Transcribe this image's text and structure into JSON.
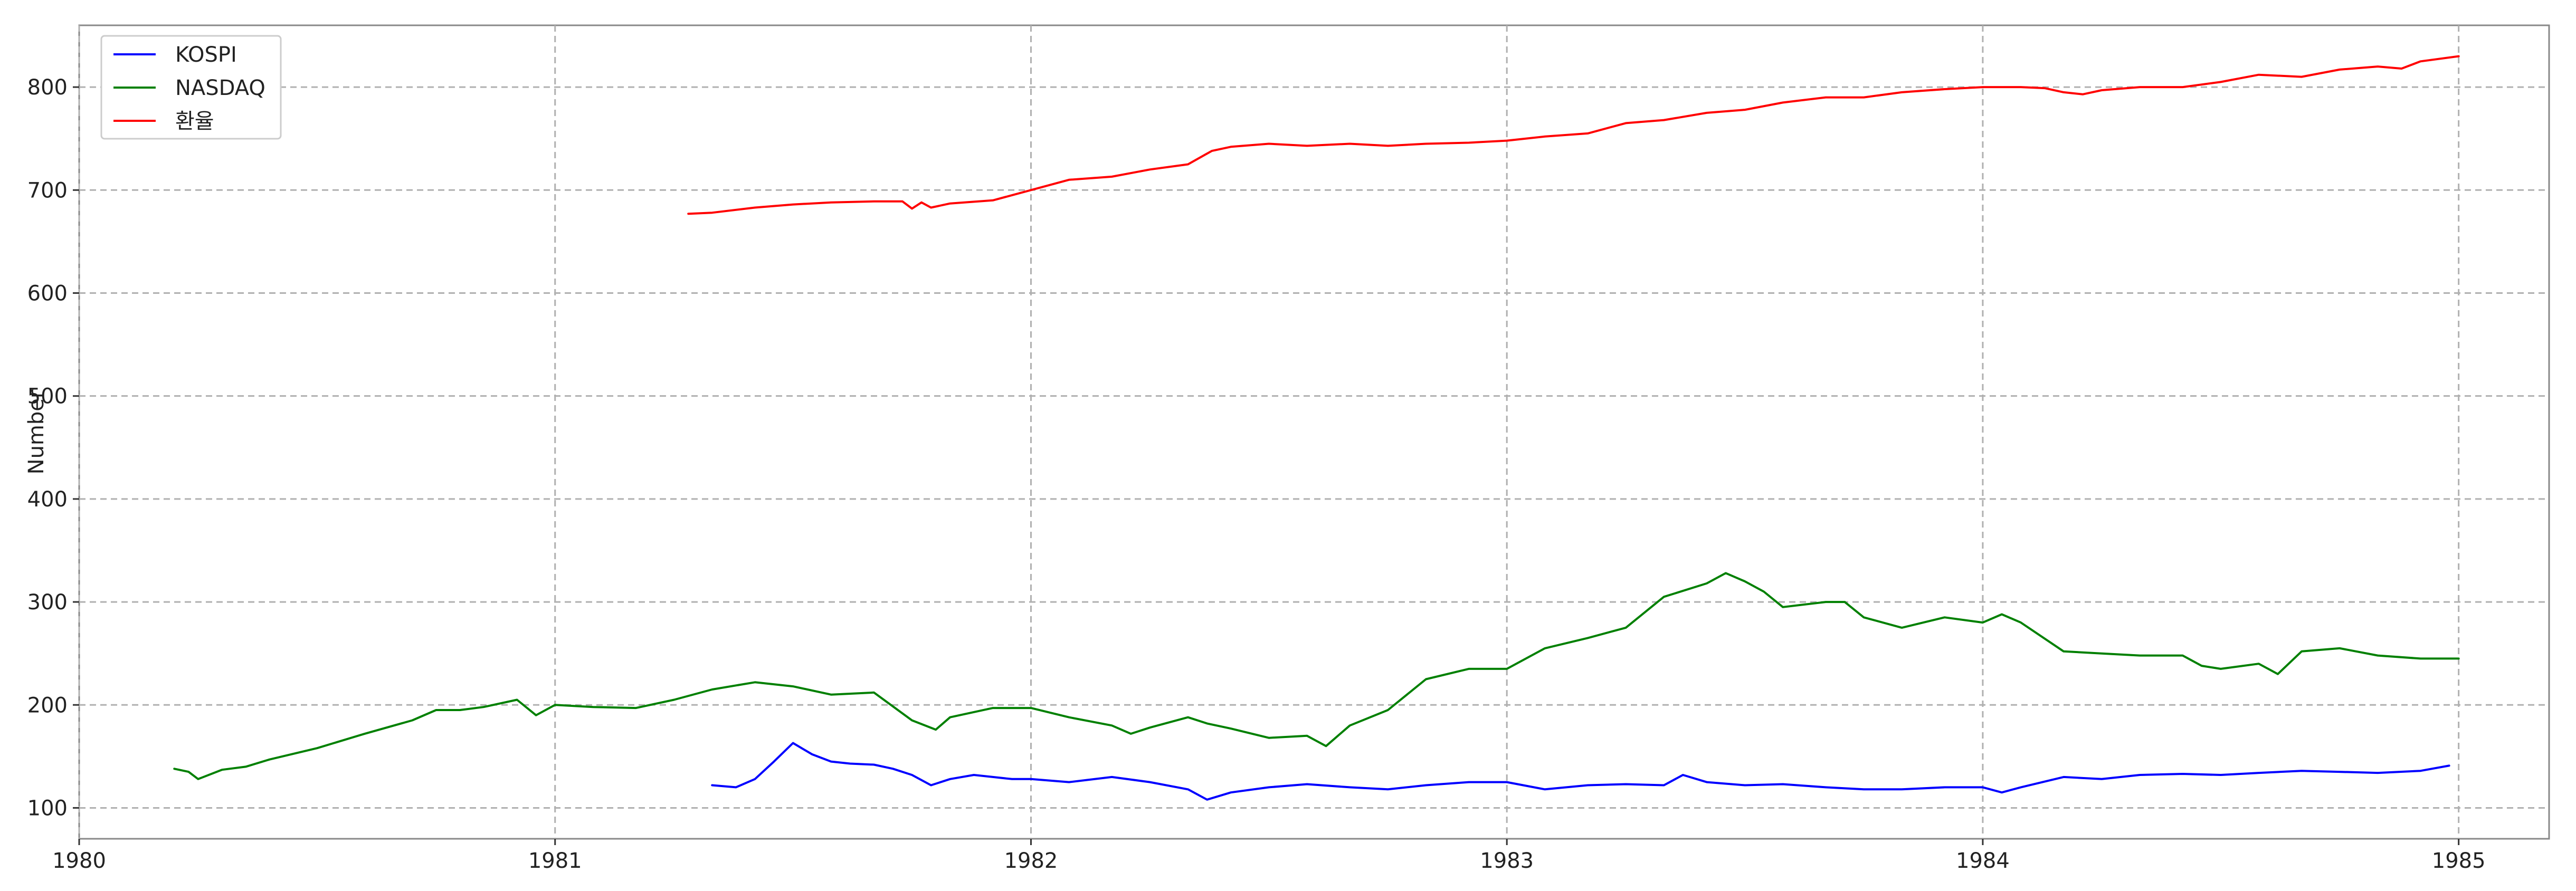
{
  "chart_data": {
    "type": "line",
    "title": "",
    "xlabel": "",
    "ylabel": "Number",
    "xlim": [
      1980.0,
      1985.19
    ],
    "ylim": [
      70,
      860
    ],
    "x_ticks": [
      1980,
      1981,
      1982,
      1983,
      1984,
      1985
    ],
    "x_tick_labels": [
      "1980",
      "1981",
      "1982",
      "1983",
      "1984",
      "1985"
    ],
    "y_ticks": [
      100,
      200,
      300,
      400,
      500,
      600,
      700,
      800
    ],
    "y_tick_labels": [
      "100",
      "200",
      "300",
      "400",
      "500",
      "600",
      "700",
      "800"
    ],
    "grid": true,
    "legend_position": "top-left",
    "series": [
      {
        "name": "KOSPI",
        "color": "#0000ff",
        "x": [
          1981.33,
          1981.38,
          1981.42,
          1981.46,
          1981.5,
          1981.54,
          1981.58,
          1981.62,
          1981.67,
          1981.71,
          1981.75,
          1981.79,
          1981.83,
          1981.88,
          1981.92,
          1981.96,
          1982.0,
          1982.08,
          1982.17,
          1982.25,
          1982.33,
          1982.37,
          1982.42,
          1982.5,
          1982.58,
          1982.67,
          1982.75,
          1982.83,
          1982.92,
          1983.0,
          1983.08,
          1983.17,
          1983.25,
          1983.33,
          1983.37,
          1983.42,
          1983.5,
          1983.58,
          1983.67,
          1983.75,
          1983.83,
          1983.92,
          1984.0,
          1984.04,
          1984.08,
          1984.17,
          1984.25,
          1984.33,
          1984.42,
          1984.5,
          1984.58,
          1984.67,
          1984.75,
          1984.83,
          1984.92,
          1984.98
        ],
        "y": [
          122,
          120,
          128,
          145,
          163,
          152,
          145,
          143,
          142,
          138,
          132,
          122,
          128,
          132,
          130,
          128,
          128,
          125,
          130,
          125,
          118,
          108,
          115,
          120,
          123,
          120,
          118,
          122,
          125,
          125,
          118,
          122,
          123,
          122,
          132,
          125,
          122,
          123,
          120,
          118,
          118,
          120,
          120,
          115,
          120,
          130,
          128,
          132,
          133,
          132,
          134,
          136,
          135,
          134,
          136,
          141
        ]
      },
      {
        "name": "NASDAQ",
        "color": "#008000",
        "x": [
          1980.2,
          1980.23,
          1980.25,
          1980.3,
          1980.35,
          1980.4,
          1980.5,
          1980.6,
          1980.7,
          1980.75,
          1980.8,
          1980.85,
          1980.92,
          1980.96,
          1981.0,
          1981.08,
          1981.17,
          1981.25,
          1981.33,
          1981.42,
          1981.5,
          1981.58,
          1981.67,
          1981.75,
          1981.8,
          1981.83,
          1981.92,
          1982.0,
          1982.08,
          1982.17,
          1982.21,
          1982.25,
          1982.33,
          1982.37,
          1982.42,
          1982.5,
          1982.58,
          1982.62,
          1982.67,
          1982.75,
          1982.83,
          1982.92,
          1983.0,
          1983.08,
          1983.17,
          1983.25,
          1983.33,
          1983.42,
          1983.46,
          1983.5,
          1983.54,
          1983.58,
          1983.67,
          1983.71,
          1983.75,
          1983.83,
          1983.92,
          1984.0,
          1984.04,
          1984.08,
          1984.17,
          1984.25,
          1984.33,
          1984.42,
          1984.46,
          1984.5,
          1984.58,
          1984.62,
          1984.67,
          1984.75,
          1984.83,
          1984.92,
          1985.0
        ],
        "y": [
          138,
          135,
          128,
          137,
          140,
          147,
          158,
          172,
          185,
          195,
          195,
          198,
          205,
          190,
          200,
          198,
          197,
          205,
          215,
          222,
          218,
          210,
          212,
          185,
          176,
          188,
          197,
          197,
          188,
          180,
          172,
          178,
          188,
          182,
          177,
          168,
          170,
          160,
          180,
          195,
          225,
          235,
          235,
          255,
          265,
          275,
          305,
          318,
          328,
          320,
          310,
          295,
          300,
          300,
          285,
          275,
          285,
          280,
          288,
          280,
          252,
          250,
          248,
          248,
          238,
          235,
          240,
          230,
          252,
          255,
          248,
          245,
          245
        ]
      },
      {
        "name": "환율",
        "color": "#ff0000",
        "x": [
          1981.28,
          1981.33,
          1981.42,
          1981.5,
          1981.58,
          1981.67,
          1981.73,
          1981.75,
          1981.77,
          1981.79,
          1981.83,
          1981.92,
          1982.0,
          1982.08,
          1982.17,
          1982.25,
          1982.33,
          1982.38,
          1982.42,
          1982.5,
          1982.58,
          1982.67,
          1982.75,
          1982.83,
          1982.92,
          1983.0,
          1983.08,
          1983.17,
          1983.25,
          1983.33,
          1983.42,
          1983.5,
          1983.58,
          1983.67,
          1983.75,
          1983.83,
          1983.92,
          1984.0,
          1984.08,
          1984.13,
          1984.17,
          1984.21,
          1984.25,
          1984.33,
          1984.42,
          1984.5,
          1984.58,
          1984.67,
          1984.75,
          1984.83,
          1984.88,
          1984.92,
          1985.0
        ],
        "y": [
          677,
          678,
          683,
          686,
          688,
          689,
          689,
          682,
          688,
          683,
          687,
          690,
          700,
          710,
          713,
          720,
          725,
          738,
          742,
          745,
          743,
          745,
          743,
          745,
          746,
          748,
          752,
          755,
          765,
          768,
          775,
          778,
          785,
          790,
          790,
          795,
          798,
          800,
          800,
          799,
          795,
          793,
          797,
          800,
          800,
          805,
          812,
          810,
          817,
          820,
          818,
          825,
          830
        ]
      }
    ]
  }
}
